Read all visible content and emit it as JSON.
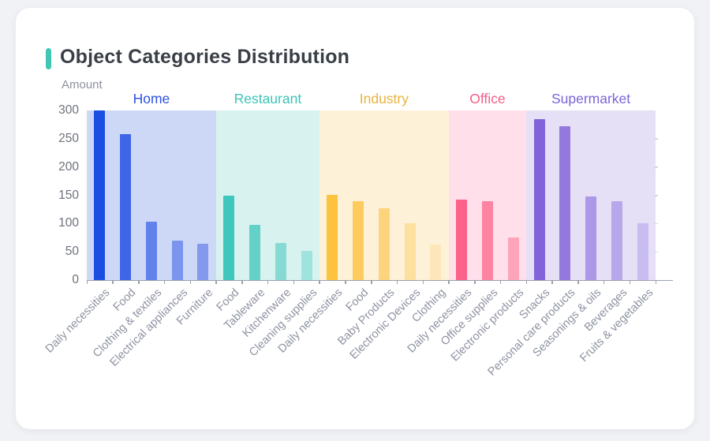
{
  "card": {
    "title": "Object Categories Distribution",
    "accent_color": "#3fc6b4",
    "background": "#ffffff",
    "page_background": "#f1f2f5"
  },
  "chart_data": {
    "type": "bar",
    "title": "Object Categories Distribution",
    "xlabel": "",
    "ylabel": "Amount",
    "ylim": [
      0,
      300
    ],
    "yticks": [
      0,
      50,
      100,
      150,
      200,
      250,
      300
    ],
    "grid": false,
    "legend_position": "group-headers-above-plot",
    "groups": [
      {
        "name": "Home",
        "label_color": "#2d50e2",
        "band_color": "#cdd8f6",
        "bars": [
          {
            "label": "Daily necessities",
            "value": 300,
            "color": "#1d4ee2"
          },
          {
            "label": "Food",
            "value": 258,
            "color": "#3f66e6"
          },
          {
            "label": "Clothing & textiles",
            "value": 103,
            "color": "#6381ea"
          },
          {
            "label": "Electrical appliances",
            "value": 70,
            "color": "#7b94ee"
          },
          {
            "label": "Furniture",
            "value": 64,
            "color": "#8399ee"
          }
        ]
      },
      {
        "name": "Restaurant",
        "label_color": "#3cc5b7",
        "band_color": "#d8f2f0",
        "bars": [
          {
            "label": "Food",
            "value": 149,
            "color": "#3fc7bd"
          },
          {
            "label": "Tableware",
            "value": 97,
            "color": "#64d1c9"
          },
          {
            "label": "Kitchenware",
            "value": 65,
            "color": "#85dad4"
          },
          {
            "label": "Cleaning supplies",
            "value": 51,
            "color": "#9fe3de"
          }
        ]
      },
      {
        "name": "Industry",
        "label_color": "#e9b33f",
        "band_color": "#fdf2d7",
        "bars": [
          {
            "label": "Daily necessities",
            "value": 151,
            "color": "#fdc23e"
          },
          {
            "label": "Food",
            "value": 139,
            "color": "#fdcb5e"
          },
          {
            "label": "Baby Products",
            "value": 127,
            "color": "#fdd47d"
          },
          {
            "label": "Electronic Devices",
            "value": 100,
            "color": "#fddf9f"
          },
          {
            "label": "Clothing",
            "value": 63,
            "color": "#fde7ba"
          }
        ]
      },
      {
        "name": "Office",
        "label_color": "#f25f88",
        "band_color": "#ffdfe9",
        "bars": [
          {
            "label": "Daily necessities",
            "value": 143,
            "color": "#fb6189"
          },
          {
            "label": "Office supplies",
            "value": 139,
            "color": "#fc83a1"
          },
          {
            "label": "Electronic products",
            "value": 75,
            "color": "#fda4bb"
          }
        ]
      },
      {
        "name": "Supermarket",
        "label_color": "#7d65d8",
        "band_color": "#e6e0f7",
        "bars": [
          {
            "label": "Snacks",
            "value": 285,
            "color": "#8163da"
          },
          {
            "label": "Personal care products",
            "value": 272,
            "color": "#9379de"
          },
          {
            "label": "Seasonings & oils",
            "value": 148,
            "color": "#ac98e7"
          },
          {
            "label": "Beverages",
            "value": 140,
            "color": "#b8a7ea"
          },
          {
            "label": "Fruits & vegetables",
            "value": 101,
            "color": "#c9bcf0"
          }
        ]
      }
    ]
  }
}
